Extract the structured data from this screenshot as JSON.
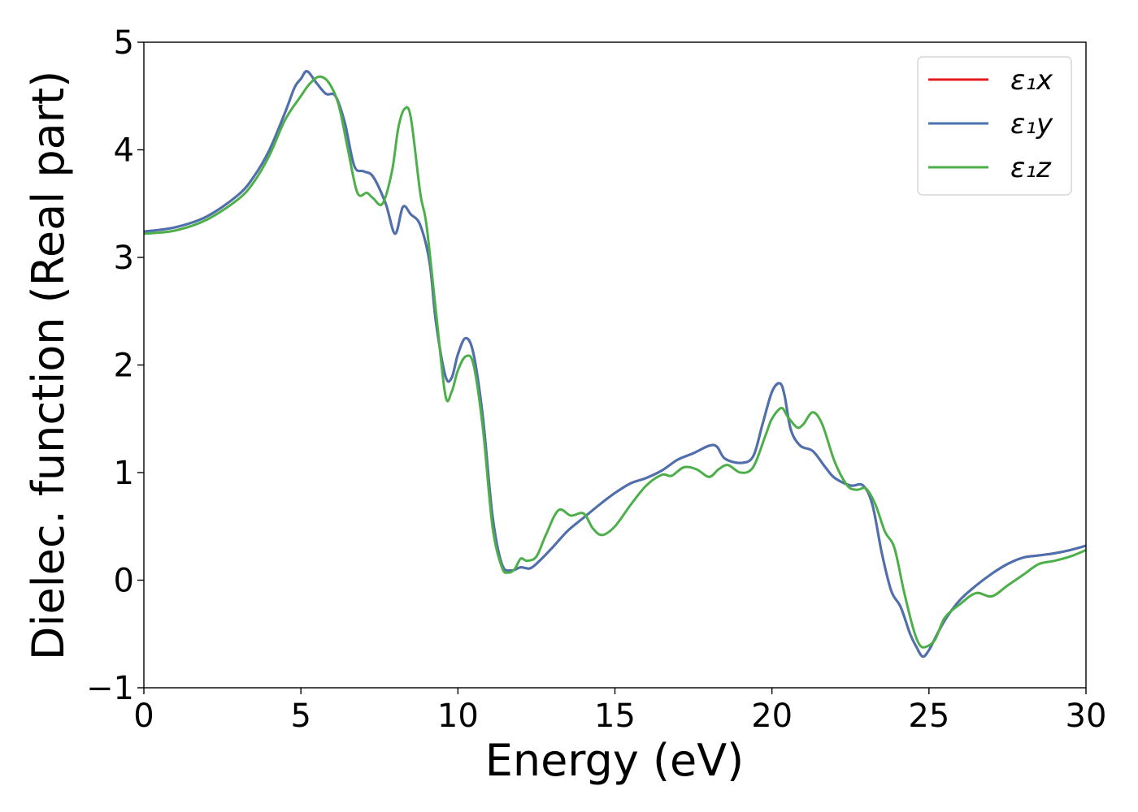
{
  "chart_data": {
    "type": "line",
    "title": "",
    "xlabel": "Energy (eV)",
    "ylabel": "Dielec. function (Real part)",
    "xlim": [
      0,
      30
    ],
    "ylim": [
      -1,
      5
    ],
    "xticks": [
      0,
      5,
      10,
      15,
      20,
      25,
      30
    ],
    "yticks": [
      -1,
      0,
      1,
      2,
      3,
      4,
      5
    ],
    "xtick_labels": [
      "0",
      "5",
      "10",
      "15",
      "20",
      "25",
      "30"
    ],
    "ytick_labels": [
      "−1",
      "0",
      "1",
      "2",
      "3",
      "4",
      "5"
    ],
    "grid": false,
    "legend_position": "top-right",
    "series": [
      {
        "name": "ε₁x",
        "color": "#e41a1c",
        "x": [
          0,
          1,
          2,
          3,
          3.5,
          4,
          4.5,
          4.8,
          5.0,
          5.2,
          5.5,
          5.8,
          6.1,
          6.4,
          6.7,
          7.0,
          7.3,
          7.7,
          8.0,
          8.25,
          8.5,
          8.8,
          9.1,
          9.3,
          9.6,
          9.8,
          10.0,
          10.25,
          10.5,
          10.8,
          11.1,
          11.4,
          11.7,
          12.0,
          12.3,
          12.6,
          13.0,
          13.5,
          14.0,
          14.5,
          15.0,
          15.5,
          16.0,
          16.5,
          17.0,
          17.5,
          18.0,
          18.25,
          18.5,
          19.0,
          19.4,
          19.7,
          20.0,
          20.25,
          20.4,
          20.6,
          20.9,
          21.3,
          21.7,
          22.0,
          22.5,
          22.9,
          23.2,
          23.5,
          23.8,
          24.1,
          24.4,
          24.6,
          24.8,
          25.0,
          25.3,
          25.6,
          26.0,
          26.5,
          27.0,
          27.5,
          28.0,
          28.5,
          29.0,
          29.5,
          30.0
        ],
        "y": [
          3.24,
          3.28,
          3.38,
          3.58,
          3.75,
          4.0,
          4.35,
          4.58,
          4.66,
          4.73,
          4.62,
          4.52,
          4.5,
          4.25,
          3.85,
          3.8,
          3.75,
          3.5,
          3.22,
          3.47,
          3.4,
          3.3,
          2.95,
          2.4,
          1.9,
          1.88,
          2.1,
          2.25,
          2.1,
          1.5,
          0.6,
          0.15,
          0.09,
          0.12,
          0.11,
          0.18,
          0.3,
          0.46,
          0.58,
          0.7,
          0.81,
          0.9,
          0.95,
          1.02,
          1.12,
          1.18,
          1.25,
          1.24,
          1.13,
          1.09,
          1.15,
          1.45,
          1.75,
          1.83,
          1.72,
          1.4,
          1.25,
          1.2,
          1.05,
          0.95,
          0.88,
          0.88,
          0.7,
          0.25,
          -0.1,
          -0.25,
          -0.5,
          -0.62,
          -0.71,
          -0.65,
          -0.48,
          -0.33,
          -0.18,
          -0.05,
          0.06,
          0.15,
          0.21,
          0.23,
          0.25,
          0.28,
          0.32
        ]
      },
      {
        "name": "ε₁y",
        "color": "#4a72b0",
        "x": [
          0,
          1,
          2,
          3,
          3.5,
          4,
          4.5,
          4.8,
          5.0,
          5.2,
          5.5,
          5.8,
          6.1,
          6.4,
          6.7,
          7.0,
          7.3,
          7.7,
          8.0,
          8.25,
          8.5,
          8.8,
          9.1,
          9.3,
          9.6,
          9.8,
          10.0,
          10.25,
          10.5,
          10.8,
          11.1,
          11.4,
          11.7,
          12.0,
          12.3,
          12.6,
          13.0,
          13.5,
          14.0,
          14.5,
          15.0,
          15.5,
          16.0,
          16.5,
          17.0,
          17.5,
          18.0,
          18.25,
          18.5,
          19.0,
          19.4,
          19.7,
          20.0,
          20.25,
          20.4,
          20.6,
          20.9,
          21.3,
          21.7,
          22.0,
          22.5,
          22.9,
          23.2,
          23.5,
          23.8,
          24.1,
          24.4,
          24.6,
          24.8,
          25.0,
          25.3,
          25.6,
          26.0,
          26.5,
          27.0,
          27.5,
          28.0,
          28.5,
          29.0,
          29.5,
          30.0
        ],
        "y": [
          3.24,
          3.28,
          3.38,
          3.58,
          3.75,
          4.0,
          4.35,
          4.58,
          4.66,
          4.73,
          4.62,
          4.52,
          4.5,
          4.25,
          3.85,
          3.8,
          3.75,
          3.5,
          3.22,
          3.47,
          3.4,
          3.3,
          2.95,
          2.4,
          1.9,
          1.88,
          2.1,
          2.25,
          2.1,
          1.5,
          0.6,
          0.15,
          0.09,
          0.12,
          0.11,
          0.18,
          0.3,
          0.46,
          0.58,
          0.7,
          0.81,
          0.9,
          0.95,
          1.02,
          1.12,
          1.18,
          1.25,
          1.24,
          1.13,
          1.09,
          1.15,
          1.45,
          1.75,
          1.83,
          1.72,
          1.4,
          1.25,
          1.2,
          1.05,
          0.95,
          0.88,
          0.88,
          0.7,
          0.25,
          -0.1,
          -0.25,
          -0.5,
          -0.62,
          -0.71,
          -0.65,
          -0.48,
          -0.33,
          -0.18,
          -0.05,
          0.06,
          0.15,
          0.21,
          0.23,
          0.25,
          0.28,
          0.32
        ]
      },
      {
        "name": "ε₁z",
        "color": "#4daf4a",
        "x": [
          0,
          1,
          2,
          3,
          3.5,
          4,
          4.5,
          5.0,
          5.3,
          5.6,
          5.9,
          6.2,
          6.5,
          6.8,
          7.1,
          7.3,
          7.6,
          7.9,
          8.1,
          8.3,
          8.5,
          8.8,
          9.0,
          9.3,
          9.6,
          9.8,
          10.0,
          10.25,
          10.5,
          10.8,
          11.1,
          11.4,
          11.6,
          11.8,
          12.0,
          12.2,
          12.5,
          12.8,
          13.2,
          13.6,
          14.0,
          14.3,
          14.6,
          15.0,
          15.5,
          16.0,
          16.5,
          16.8,
          17.2,
          17.6,
          18.0,
          18.3,
          18.6,
          19.0,
          19.4,
          19.8,
          20.0,
          20.3,
          20.5,
          20.8,
          21.0,
          21.3,
          21.6,
          22.0,
          22.4,
          22.7,
          23.0,
          23.3,
          23.6,
          23.9,
          24.2,
          24.5,
          24.7,
          24.9,
          25.2,
          25.5,
          26.0,
          26.5,
          27.0,
          27.5,
          28.0,
          28.5,
          29.0,
          29.5,
          30.0
        ],
        "y": [
          3.22,
          3.25,
          3.35,
          3.54,
          3.7,
          3.95,
          4.28,
          4.5,
          4.62,
          4.68,
          4.62,
          4.42,
          4.0,
          3.6,
          3.6,
          3.55,
          3.5,
          3.8,
          4.2,
          4.38,
          4.3,
          3.6,
          3.3,
          2.5,
          1.72,
          1.75,
          1.95,
          2.08,
          2.0,
          1.4,
          0.5,
          0.12,
          0.07,
          0.1,
          0.2,
          0.18,
          0.22,
          0.42,
          0.65,
          0.6,
          0.62,
          0.48,
          0.42,
          0.5,
          0.7,
          0.88,
          0.98,
          0.97,
          1.05,
          1.03,
          0.96,
          1.03,
          1.07,
          1.0,
          1.05,
          1.35,
          1.5,
          1.6,
          1.52,
          1.42,
          1.45,
          1.56,
          1.45,
          1.1,
          0.88,
          0.84,
          0.85,
          0.7,
          0.45,
          0.3,
          -0.1,
          -0.45,
          -0.6,
          -0.62,
          -0.55,
          -0.35,
          -0.22,
          -0.12,
          -0.15,
          -0.05,
          0.05,
          0.15,
          0.18,
          0.22,
          0.28
        ]
      }
    ]
  }
}
